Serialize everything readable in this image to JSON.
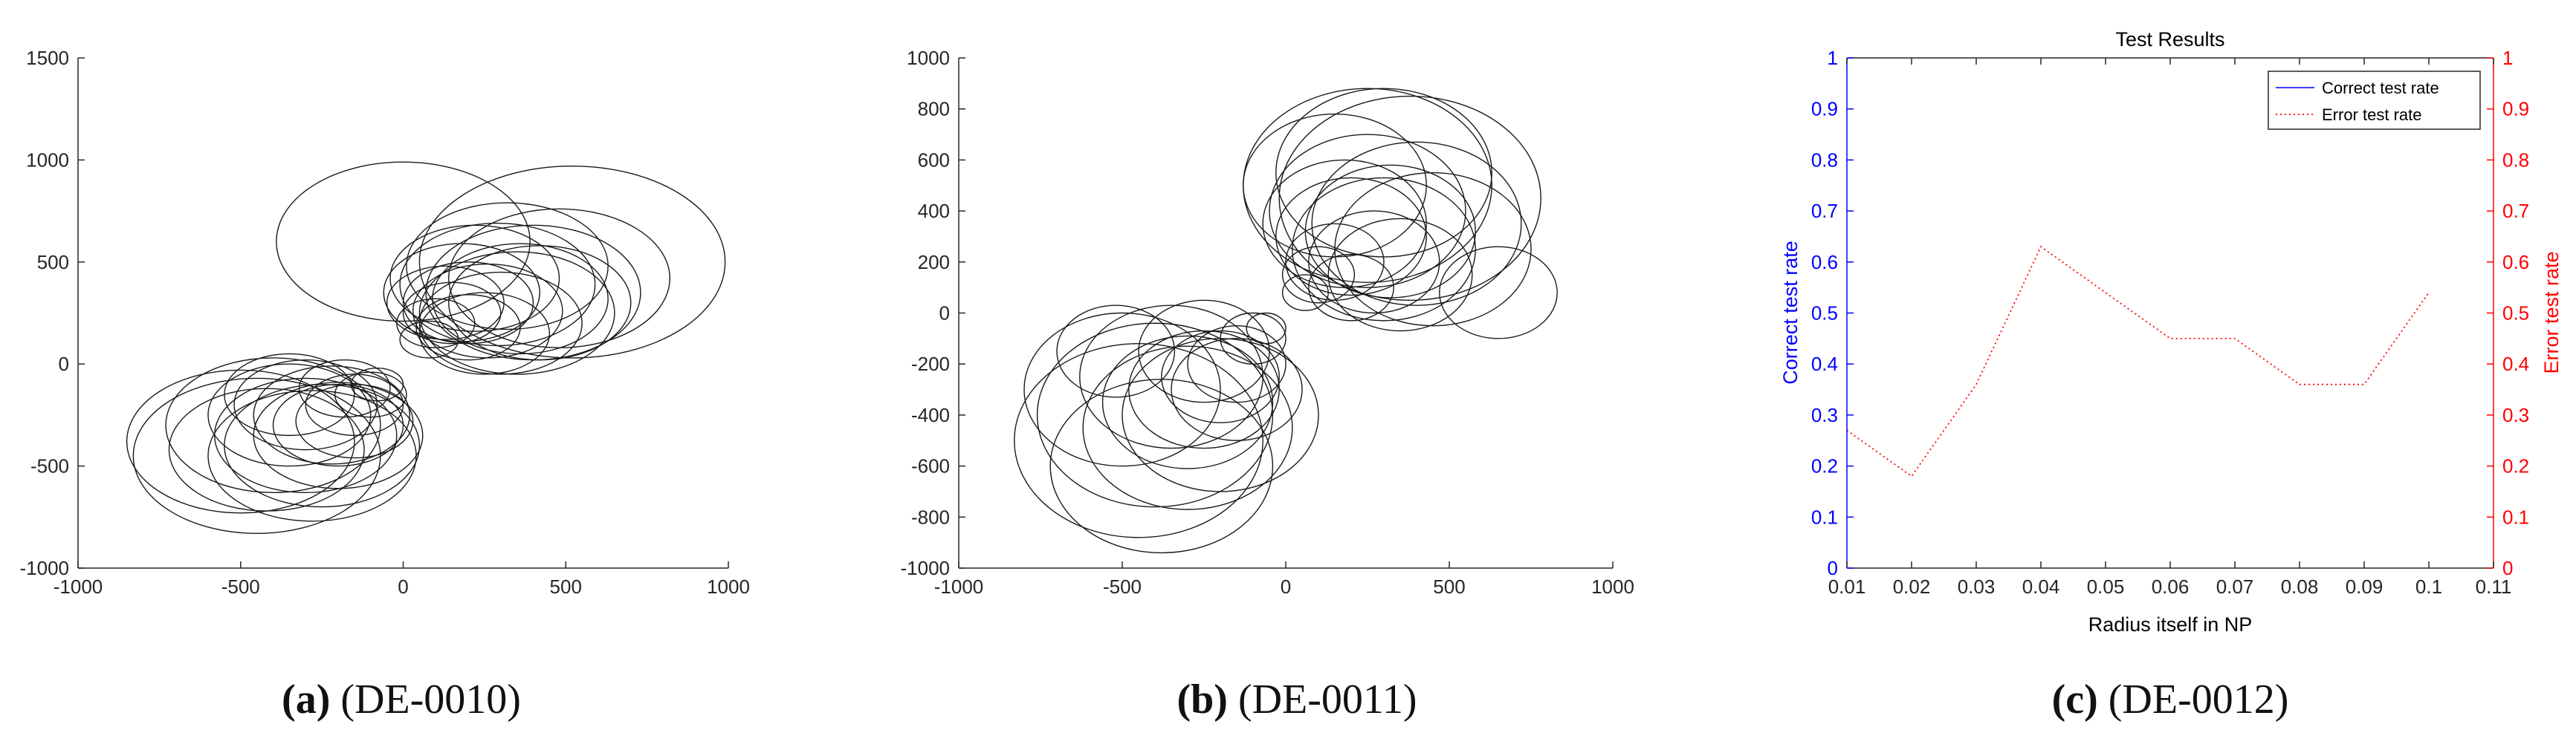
{
  "chart_data": [
    {
      "type": "scatter",
      "marker": "circle-outline",
      "xlim": [
        -1000,
        1000
      ],
      "ylim": [
        -1000,
        1500
      ],
      "xticks": [
        "-1000",
        "-500",
        "0",
        "500",
        "1000"
      ],
      "yticks": [
        "-1000",
        "-500",
        "0",
        "500",
        "1000",
        "1500"
      ],
      "caption_letter": "(a)",
      "caption_text": " (DE-0010)",
      "circles": [
        {
          "cx": 0,
          "cy": 600,
          "r": 390
        },
        {
          "cx": 520,
          "cy": 500,
          "r": 470
        },
        {
          "cx": 290,
          "cy": 390,
          "r": 300
        },
        {
          "cx": 200,
          "cy": 300,
          "r": 200
        },
        {
          "cx": 400,
          "cy": 350,
          "r": 330
        },
        {
          "cx": 150,
          "cy": 250,
          "r": 150
        },
        {
          "cx": 300,
          "cy": 200,
          "r": 250
        },
        {
          "cx": 100,
          "cy": 200,
          "r": 120
        },
        {
          "cx": 350,
          "cy": 250,
          "r": 300
        },
        {
          "cx": 250,
          "cy": 150,
          "r": 200
        },
        {
          "cx": 180,
          "cy": 350,
          "r": 240
        },
        {
          "cx": 420,
          "cy": 300,
          "r": 280
        },
        {
          "cx": 80,
          "cy": 120,
          "r": 90
        },
        {
          "cx": 220,
          "cy": 420,
          "r": 260
        },
        {
          "cx": 320,
          "cy": 480,
          "r": 310
        },
        {
          "cx": 480,
          "cy": 420,
          "r": 340
        },
        {
          "cx": 130,
          "cy": 300,
          "r": 180
        },
        {
          "cx": 260,
          "cy": 260,
          "r": 230
        },
        {
          "cx": 200,
          "cy": 180,
          "r": 160
        },
        {
          "cx": 360,
          "cy": 320,
          "r": 270
        },
        {
          "cx": -450,
          "cy": -450,
          "r": 380
        },
        {
          "cx": -300,
          "cy": -350,
          "r": 280
        },
        {
          "cx": -200,
          "cy": -300,
          "r": 200
        },
        {
          "cx": -350,
          "cy": -250,
          "r": 250
        },
        {
          "cx": -150,
          "cy": -200,
          "r": 150
        },
        {
          "cx": -250,
          "cy": -400,
          "r": 300
        },
        {
          "cx": -400,
          "cy": -300,
          "r": 330
        },
        {
          "cx": -100,
          "cy": -150,
          "r": 110
        },
        {
          "cx": -300,
          "cy": -200,
          "r": 220
        },
        {
          "cx": -200,
          "cy": -350,
          "r": 260
        },
        {
          "cx": -500,
          "cy": -380,
          "r": 350
        },
        {
          "cx": -150,
          "cy": -280,
          "r": 180
        },
        {
          "cx": -280,
          "cy": -450,
          "r": 320
        },
        {
          "cx": -350,
          "cy": -150,
          "r": 200
        },
        {
          "cx": -80,
          "cy": -100,
          "r": 80
        },
        {
          "cx": -220,
          "cy": -250,
          "r": 240
        },
        {
          "cx": -420,
          "cy": -420,
          "r": 300
        },
        {
          "cx": -180,
          "cy": -120,
          "r": 140
        }
      ]
    },
    {
      "type": "scatter",
      "marker": "circle-outline",
      "xlim": [
        -1000,
        1000
      ],
      "ylim": [
        -1000,
        1000
      ],
      "xticks": [
        "-1000",
        "-500",
        "0",
        "500",
        "1000"
      ],
      "yticks": [
        "-1000",
        "-800",
        "-600",
        "-400",
        "-200",
        "0",
        "200",
        "400",
        "600",
        "800",
        "1000"
      ],
      "caption_letter": "(b)",
      "caption_text": " (DE-0011)",
      "circles": [
        {
          "cx": 250,
          "cy": 500,
          "r": 380
        },
        {
          "cx": 380,
          "cy": 450,
          "r": 400
        },
        {
          "cx": 200,
          "cy": 300,
          "r": 230
        },
        {
          "cx": 300,
          "cy": 250,
          "r": 280
        },
        {
          "cx": 150,
          "cy": 200,
          "r": 150
        },
        {
          "cx": 400,
          "cy": 350,
          "r": 320
        },
        {
          "cx": 100,
          "cy": 150,
          "r": 110
        },
        {
          "cx": 250,
          "cy": 400,
          "r": 300
        },
        {
          "cx": 350,
          "cy": 150,
          "r": 220
        },
        {
          "cx": 200,
          "cy": 100,
          "r": 130
        },
        {
          "cx": 450,
          "cy": 250,
          "r": 300
        },
        {
          "cx": 300,
          "cy": 550,
          "r": 330
        },
        {
          "cx": 650,
          "cy": 80,
          "r": 180
        },
        {
          "cx": 180,
          "cy": 350,
          "r": 250
        },
        {
          "cx": 320,
          "cy": 320,
          "r": 260
        },
        {
          "cx": 150,
          "cy": 500,
          "r": 280
        },
        {
          "cx": 60,
          "cy": 80,
          "r": 70
        },
        {
          "cx": 270,
          "cy": 200,
          "r": 200
        },
        {
          "cx": -450,
          "cy": -500,
          "r": 380
        },
        {
          "cx": -400,
          "cy": -400,
          "r": 360
        },
        {
          "cx": -250,
          "cy": -300,
          "r": 230
        },
        {
          "cx": -350,
          "cy": -250,
          "r": 280
        },
        {
          "cx": -150,
          "cy": -200,
          "r": 150
        },
        {
          "cx": -200,
          "cy": -400,
          "r": 300
        },
        {
          "cx": -500,
          "cy": -300,
          "r": 300
        },
        {
          "cx": -100,
          "cy": -100,
          "r": 100
        },
        {
          "cx": -300,
          "cy": -450,
          "r": 320
        },
        {
          "cx": -250,
          "cy": -150,
          "r": 200
        },
        {
          "cx": -380,
          "cy": -600,
          "r": 340
        },
        {
          "cx": -150,
          "cy": -300,
          "r": 200
        },
        {
          "cx": -520,
          "cy": -150,
          "r": 180
        },
        {
          "cx": -300,
          "cy": -350,
          "r": 260
        },
        {
          "cx": -60,
          "cy": -60,
          "r": 60
        },
        {
          "cx": -200,
          "cy": -250,
          "r": 180
        }
      ]
    },
    {
      "type": "line",
      "title": "Test Results",
      "xlabel": "Radius itself in NP",
      "ylabel_left": "Correct test rate",
      "ylabel_right": "Error test rate",
      "xlim": [
        0.01,
        0.11
      ],
      "ylim": [
        0,
        1
      ],
      "xticks": [
        "0.01",
        "0.02",
        "0.03",
        "0.04",
        "0.05",
        "0.06",
        "0.07",
        "0.08",
        "0.09",
        "0.1",
        "0.11"
      ],
      "yticks": [
        "0",
        "0.1",
        "0.2",
        "0.3",
        "0.4",
        "0.5",
        "0.6",
        "0.7",
        "0.8",
        "0.9",
        "1"
      ],
      "legend_position": "top-right",
      "colors": {
        "left_axis": "#0000ff",
        "right_axis": "#ff0000"
      },
      "series": [
        {
          "name": "Correct test rate",
          "style": "solid",
          "color": "#0000ff",
          "x": [],
          "y": []
        },
        {
          "name": "Error test rate",
          "style": "dotted",
          "color": "#ff0000",
          "x": [
            0.01,
            0.02,
            0.03,
            0.04,
            0.05,
            0.06,
            0.07,
            0.08,
            0.09,
            0.1
          ],
          "y": [
            0.27,
            0.18,
            0.36,
            0.63,
            0.54,
            0.45,
            0.45,
            0.36,
            0.36,
            0.54
          ]
        }
      ],
      "caption_letter": "(c)",
      "caption_text": " (DE-0012)"
    }
  ]
}
